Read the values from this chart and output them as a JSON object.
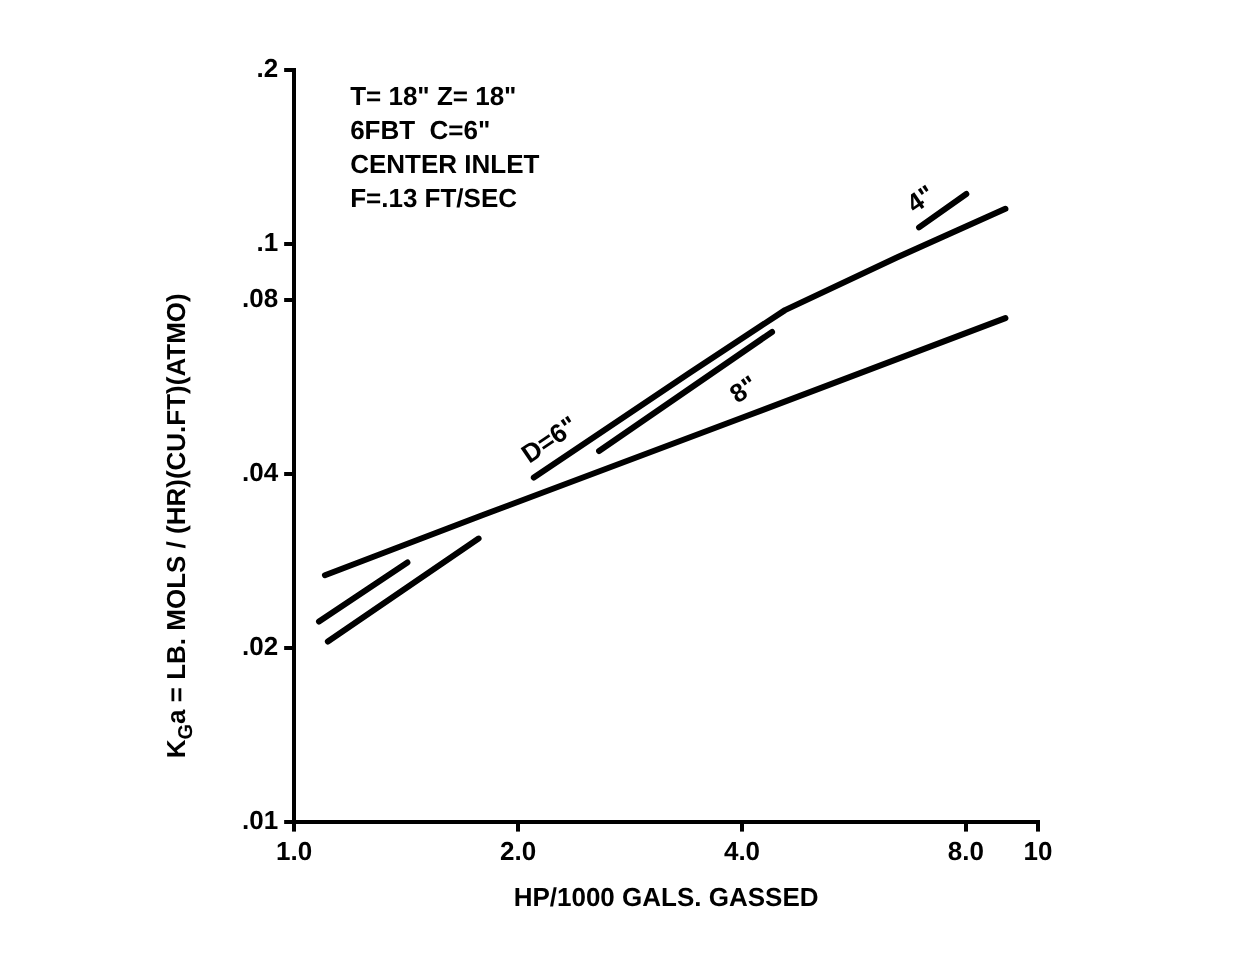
{
  "chart_data": {
    "type": "line",
    "xlabel": "HP/1000 GALS. GASSED",
    "ylabel": "K$_{G}$a = LB. MOLS / (HR)(CU.FT)(ATMO)",
    "log": "xy",
    "grid": false,
    "legend": false,
    "marker": "none",
    "line_style": "solid",
    "xlim": [
      1,
      10
    ],
    "xticks": [
      {
        "value": 1,
        "label": "1.0"
      },
      {
        "value": 2,
        "label": "2.0"
      },
      {
        "value": 4,
        "label": "4.0"
      },
      {
        "value": 8,
        "label": "8.0"
      },
      10
    ],
    "ylim": [
      0.01,
      0.2
    ],
    "yticks": [
      {
        "value": 0.01,
        "label": ".01"
      },
      {
        "value": 0.02,
        "label": ".02"
      },
      {
        "value": 0.04,
        "label": ".04"
      },
      {
        "value": 0.08,
        "label": ".08"
      },
      {
        "value": 0.1,
        "label": ".1"
      },
      {
        "value": 0.2,
        "label": ".2"
      }
    ],
    "series": [
      {
        "color": "#000000",
        "x": [
          1.1,
          1.79,
          4,
          9.04
        ],
        "values": [
          0.0267,
          0.0339,
          0.05,
          0.0744
        ]
      },
      {
        "color": "#000000",
        "x": [
          2.1,
          3.4,
          4.57,
          6.47,
          9.04
        ],
        "values": [
          0.0394,
          0.0598,
          0.0768,
          0.0948,
          0.115
        ]
      },
      {
        "color": "#000000",
        "x": [
          2.57,
          4.39
        ],
        "values": [
          0.0438,
          0.0704
        ]
      },
      {
        "color": "#000000",
        "x": [
          1.08,
          1.42
        ],
        "values": [
          0.0222,
          0.0281
        ]
      },
      {
        "color": "#000000",
        "x": [
          1.11,
          1.77
        ],
        "values": [
          0.0205,
          0.0309
        ]
      },
      {
        "color": "#000000",
        "x": [
          6.92,
          8.01
        ],
        "values": [
          0.1068,
          0.122
        ]
      }
    ],
    "annotations": [
      "T= 18\" Z= 18\"",
      "6FBT  C=6\"",
      "CENTER INLET",
      "F=.13 FT/SEC",
      {
        "text": "D=6\"",
        "x": 2.1,
        "y": 0.0394
      },
      {
        "text": "8\"",
        "x": 4,
        "y": 0.05
      },
      {
        "text": "4\"",
        "x": 6.92,
        "y": 0.1068
      }
    ]
  }
}
